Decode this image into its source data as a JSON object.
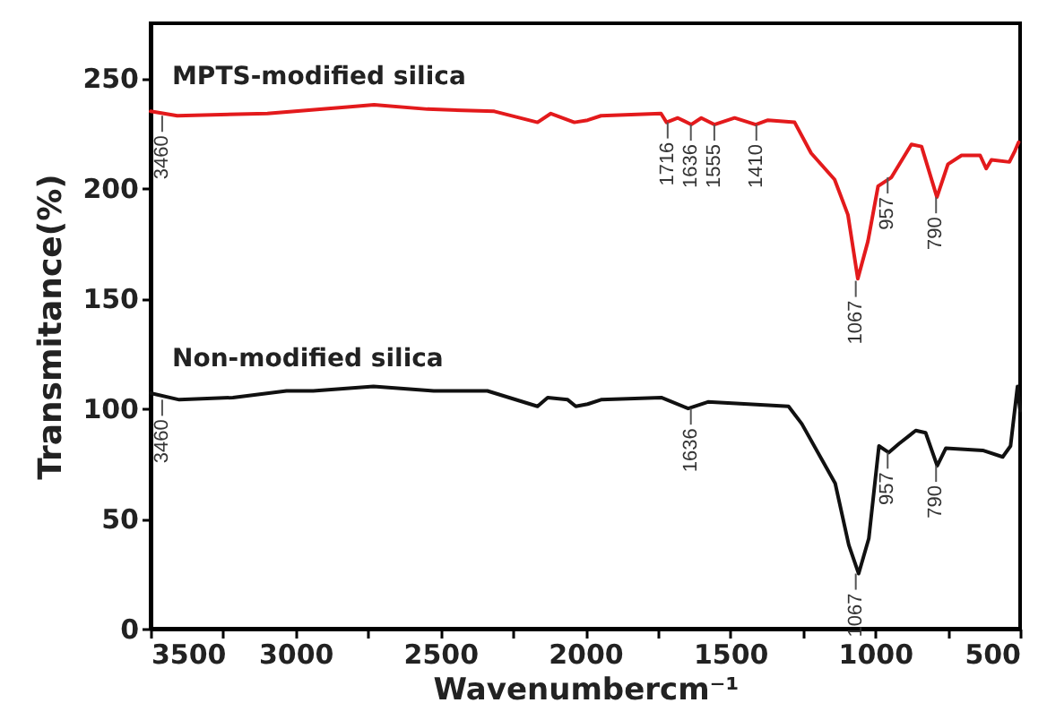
{
  "chart_data": {
    "type": "line",
    "xlabel": "Wavenumbercm⁻¹",
    "ylabel": "Transmitance(%)",
    "xlim": [
      3500,
      500
    ],
    "ylim": [
      0,
      275
    ],
    "xticks": [
      3500,
      {
        "value": 3250,
        "label": null
      },
      3000,
      {
        "value": 2750,
        "label": null
      },
      2500,
      {
        "value": 2250,
        "label": null
      },
      2000,
      {
        "value": 1750,
        "label": null
      },
      1500,
      {
        "value": 1250,
        "label": null
      },
      1000,
      {
        "value": 750,
        "label": null
      },
      500
    ],
    "yticks": [
      0,
      50,
      100,
      150,
      200,
      250
    ],
    "grid": false,
    "series": [
      {
        "name": "MPTS-modified silica",
        "color": "#e31a1c",
        "x": [
          3500,
          3408,
          3097,
          2821,
          2729,
          2545,
          2314,
          2165,
          2119,
          2038,
          1992,
          1946,
          1739,
          1720,
          1681,
          1635,
          1600,
          1555,
          1485,
          1412,
          1370,
          1278,
          1221,
          1140,
          1094,
          1060,
          1025,
          990,
          944,
          875,
          840,
          787,
          749,
          702,
          638,
          617,
          599,
          537,
          518,
          505
        ],
        "values": [
          235,
          233,
          234,
          237,
          238,
          236,
          235,
          230,
          234,
          230,
          231,
          233,
          234,
          230,
          232,
          229,
          232,
          229,
          232,
          229,
          231,
          230,
          216,
          204,
          188,
          159,
          176,
          201,
          205,
          220,
          219,
          196,
          211,
          215,
          215,
          209,
          213,
          212,
          217,
          221
        ]
      },
      {
        "name": "Non-modified silica",
        "color": "#111111",
        "x": [
          3500,
          3401,
          3216,
          3031,
          2939,
          2731,
          2523,
          2338,
          2165,
          2130,
          2061,
          2033,
          1992,
          1946,
          1738,
          1645,
          1577,
          1299,
          1253,
          1138,
          1091,
          1057,
          1022,
          987,
          953,
          918,
          860,
          826,
          786,
          756,
          629,
          560,
          533,
          509,
          500
        ],
        "values": [
          107,
          104,
          105,
          108,
          108,
          110,
          108,
          108,
          101,
          105,
          104,
          101,
          102,
          104,
          105,
          100,
          103,
          101,
          93,
          66,
          38,
          25,
          41,
          83,
          80,
          84,
          90,
          89,
          74,
          82,
          81,
          78,
          83,
          110,
          99
        ]
      }
    ],
    "annotations": [
      {
        "text": "3460",
        "x": 3460,
        "y": 233
      },
      {
        "text": "1716",
        "x": 1716,
        "y": 230
      },
      {
        "text": "1636",
        "x": 1636,
        "y": 229
      },
      {
        "text": "1555",
        "x": 1555,
        "y": 229
      },
      {
        "text": "1410",
        "x": 1410,
        "y": 229
      },
      {
        "text": "1067",
        "x": 1067,
        "y": 158
      },
      {
        "text": "957",
        "x": 957,
        "y": 205
      },
      {
        "text": "790",
        "x": 790,
        "y": 196
      },
      {
        "text": "3460",
        "x": 3460,
        "y": 104
      },
      {
        "text": "1636",
        "x": 1636,
        "y": 100
      },
      {
        "text": "1067",
        "x": 1067,
        "y": 25
      },
      {
        "text": "957",
        "x": 957,
        "y": 80
      },
      {
        "text": "790",
        "x": 790,
        "y": 74
      }
    ]
  }
}
